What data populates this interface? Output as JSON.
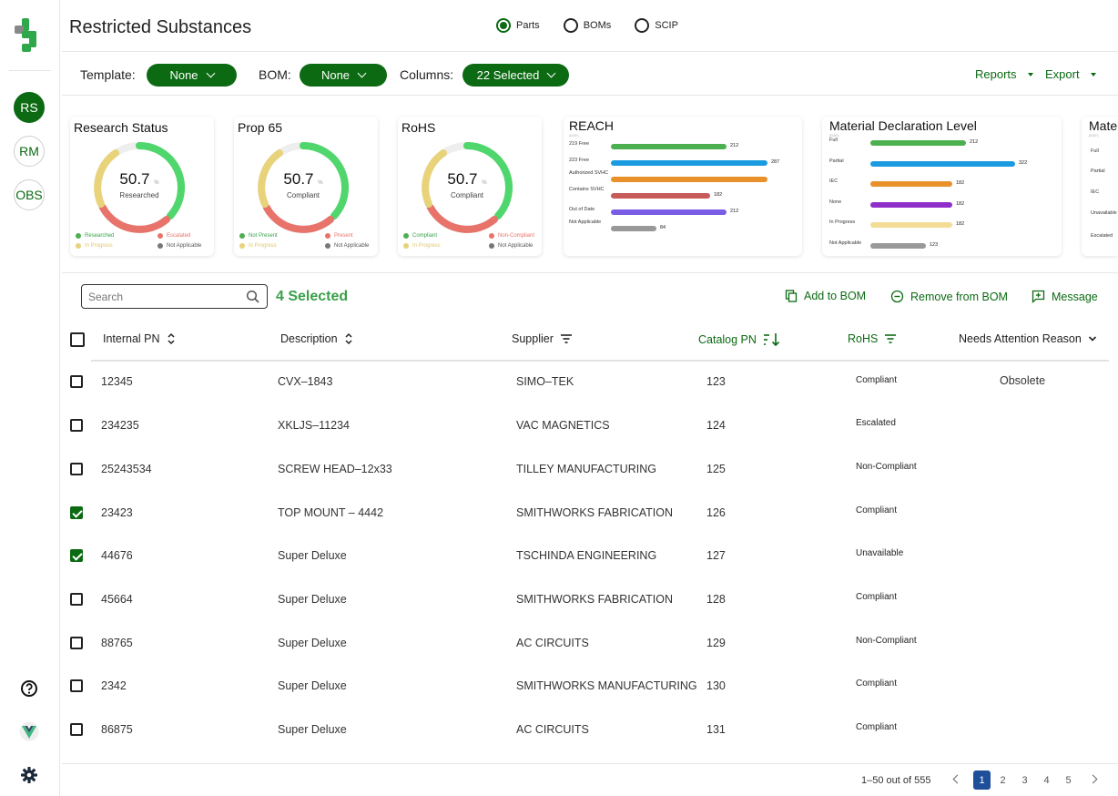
{
  "header": {
    "title": "Restricted Substances"
  },
  "view_toggle": [
    {
      "label": "Parts",
      "selected": true
    },
    {
      "label": "BOMs",
      "selected": false
    },
    {
      "label": "SCIP",
      "selected": false
    }
  ],
  "sidebar": {
    "items": [
      {
        "label": "RS",
        "active": true
      },
      {
        "label": "RM",
        "active": false
      },
      {
        "label": "OBS",
        "active": false
      }
    ],
    "bottom_icons": [
      "help-icon",
      "vue-logo-icon",
      "settings-gear-icon"
    ]
  },
  "toolbar": {
    "template_label": "Template:",
    "template_value": "None",
    "bom_label": "BOM:",
    "bom_value": "None",
    "columns_label": "Columns:",
    "columns_value": "22 Selected",
    "reports_label": "Reports",
    "export_label": "Export"
  },
  "cards": {
    "research_status": {
      "title": "Research Status",
      "value": "50.7",
      "unit": "%",
      "caption": "Researched",
      "legend": [
        "Researched",
        "Escalated",
        "In Progress",
        "Not Applicable"
      ]
    },
    "prop65": {
      "title": "Prop 65",
      "value": "50.7",
      "unit": "%",
      "caption": "Compliant",
      "legend": [
        "Not Present",
        "Present",
        "In Progress",
        "Not Applicable"
      ]
    },
    "rohs": {
      "title": "RoHS",
      "value": "50.7",
      "unit": "%",
      "caption": "Compliant",
      "legend": [
        "Compliant",
        "Non-Compliant",
        "In Progress",
        "Not Applicable"
      ]
    },
    "reach": {
      "title": "REACH",
      "units": "(DAY)",
      "bars": [
        {
          "label": "219 Free",
          "value": 212,
          "display": "212",
          "color": "#4caf50"
        },
        {
          "label": "223 Free",
          "value": 287,
          "display": "287",
          "color": "#1a9be0"
        },
        {
          "label": "Authorized SVHC",
          "value": 287,
          "display": "",
          "color": "#e8912b"
        },
        {
          "label": "Contains SVHC",
          "value": 182,
          "display": "182",
          "color": "#c85a5a"
        },
        {
          "label": "Out of Date",
          "value": 212,
          "display": "212",
          "color": "#7b5ce6"
        },
        {
          "label": "Not Applicable",
          "value": 84,
          "display": "84",
          "color": "#999999"
        }
      ],
      "max": 287
    },
    "material": {
      "title": "Material Declaration Level",
      "units": "(DAY)",
      "bars": [
        {
          "label": "Full",
          "value": 212,
          "display": "212",
          "color": "#4caf50"
        },
        {
          "label": "Partial",
          "value": 322,
          "display": "322",
          "color": "#1a9be0"
        },
        {
          "label": "IEC",
          "value": 182,
          "display": "182",
          "color": "#e8912b"
        },
        {
          "label": "None",
          "value": 182,
          "display": "182",
          "color": "#8e2fc9"
        },
        {
          "label": "In Progress",
          "value": 182,
          "display": "182",
          "color": "#f3dc96"
        },
        {
          "label": "Not Applicable",
          "value": 123,
          "display": "123",
          "color": "#999999"
        }
      ],
      "max": 322
    },
    "mate_partial": {
      "title": "Mate",
      "units": "(DAY)",
      "labels": [
        "Full",
        "Partial",
        "IEC",
        "Unavailable",
        "Escalated"
      ]
    }
  },
  "actions": {
    "search_placeholder": "Search",
    "selected_count": "4 Selected",
    "add_to_bom": "Add to BOM",
    "remove_from_bom": "Remove from BOM",
    "message": "Message"
  },
  "table": {
    "headers": {
      "internal_pn": "Internal PN",
      "description": "Description",
      "supplier": "Supplier",
      "catalog_pn": "Catalog PN",
      "rohs": "RoHS",
      "needs_attention": "Needs Attention Reason"
    },
    "rows": [
      {
        "checked": false,
        "pn": "12345",
        "desc": "CVX–1843",
        "supplier": "SIMO–TEK",
        "catalog": "123",
        "rohs": "Compliant",
        "reason": "Obsolete"
      },
      {
        "checked": false,
        "pn": "234235",
        "desc": "XKLJS–11234",
        "supplier": "VAC MAGNETICS",
        "catalog": "124",
        "rohs": "Escalated",
        "reason": ""
      },
      {
        "checked": false,
        "pn": "25243534",
        "desc": "SCREW HEAD–12x33",
        "supplier": "TILLEY MANUFACTURING",
        "catalog": "125",
        "rohs": "Non-Compliant",
        "reason": ""
      },
      {
        "checked": true,
        "pn": "23423",
        "desc": "TOP MOUNT – 4442",
        "supplier": "SMITHWORKS FABRICATION",
        "catalog": "126",
        "rohs": "Compliant",
        "reason": ""
      },
      {
        "checked": true,
        "pn": "44676",
        "desc": "Super Deluxe",
        "supplier": "TSCHINDA ENGINEERING",
        "catalog": "127",
        "rohs": "Unavailable",
        "reason": ""
      },
      {
        "checked": false,
        "pn": "45664",
        "desc": "Super Deluxe",
        "supplier": "SMITHWORKS FABRICATION",
        "catalog": "128",
        "rohs": "Compliant",
        "reason": ""
      },
      {
        "checked": false,
        "pn": "88765",
        "desc": "Super Deluxe",
        "supplier": "AC CIRCUITS",
        "catalog": "129",
        "rohs": "Non-Compliant",
        "reason": ""
      },
      {
        "checked": false,
        "pn": "2342",
        "desc": "Super Deluxe",
        "supplier": "SMITHWORKS MANUFACTURING",
        "catalog": "130",
        "rohs": "Compliant",
        "reason": ""
      },
      {
        "checked": false,
        "pn": "86875",
        "desc": "Super Deluxe",
        "supplier": "AC CIRCUITS",
        "catalog": "131",
        "rohs": "Compliant",
        "reason": ""
      }
    ]
  },
  "pagination": {
    "info": "1–50 out of 555",
    "pages": [
      "1",
      "2",
      "3",
      "4",
      "5"
    ],
    "current": "1"
  },
  "colors": {
    "brand_green": "#0b6a12",
    "accent_green": "#3aa04a",
    "page_active": "#1f4f9a"
  }
}
